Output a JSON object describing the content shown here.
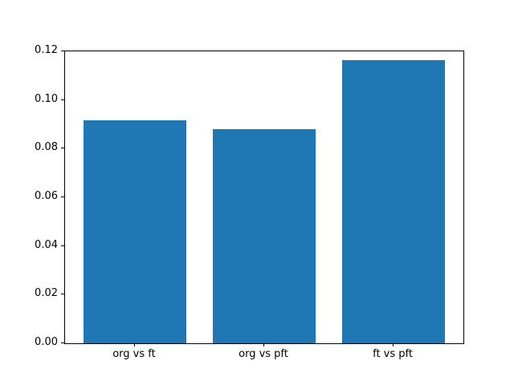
{
  "figure": {
    "background": "#ffffff"
  },
  "chart_data": {
    "type": "bar",
    "categories": [
      "org vs ft",
      "org vs pft",
      "ft vs pft"
    ],
    "values": [
      0.0917,
      0.088,
      0.1164
    ],
    "title": "",
    "xlabel": "",
    "ylabel": "",
    "ylim": [
      0,
      0.12
    ],
    "xlim": [
      -0.54,
      2.54
    ],
    "ytick_values": [
      0.0,
      0.02,
      0.04,
      0.06,
      0.08,
      0.1,
      0.12
    ],
    "ytick_labels": [
      "0.00",
      "0.02",
      "0.04",
      "0.06",
      "0.08",
      "0.10",
      "0.12"
    ],
    "bar_width_fraction": 0.8,
    "bar_color": "#1f77b4",
    "axis_color": "#000000",
    "grid": false,
    "legend": false
  }
}
